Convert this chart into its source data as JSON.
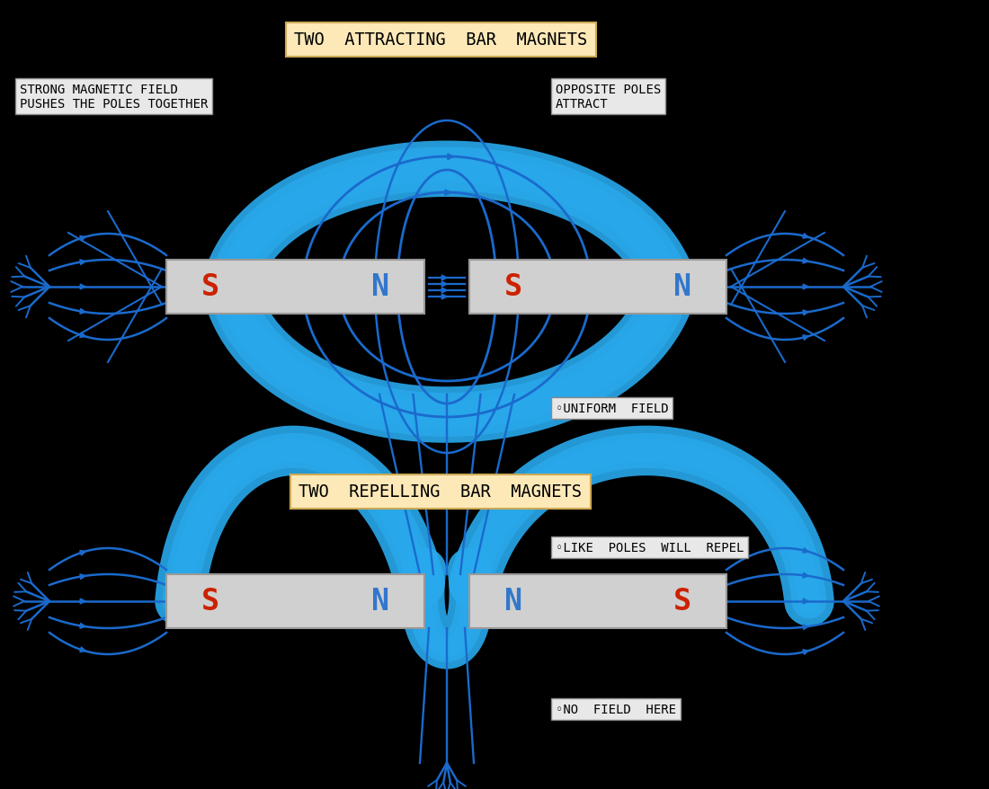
{
  "background_color": "#000000",
  "title1": "TWO  ATTRACTING  BAR  MAGNETS",
  "title1_box_color": "#fde9b8",
  "title2": "TWO  REPELLING  BAR  MAGNETS",
  "title2_box_color": "#fde9b8",
  "label1": "STRONG MAGNETIC FIELD\nPUSHES THE POLES TOGETHER",
  "label2": "OPPOSITE POLES\nATTRACT",
  "label3": "UNIFORM  FIELD",
  "label4": "LIKE  POLES  WILL  REPEL",
  "label5": "NO  FIELD  HERE",
  "magnet_color": "#d0d0d0",
  "magnet_border": "#999999",
  "S_color": "#cc2200",
  "N_color": "#3377cc",
  "line_color": "#1a6acc",
  "thick_line_color": "#29aaee",
  "label_box_color": "#e8e8e8"
}
